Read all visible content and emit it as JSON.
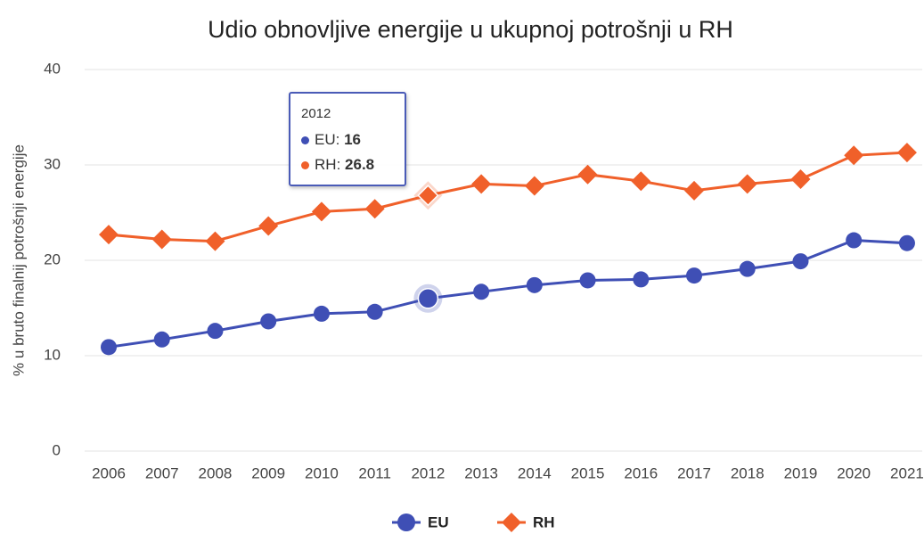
{
  "chart_data": {
    "type": "line",
    "title": "Udio obnovljive energije u ukupnoj potrošnji u RH",
    "y_label": "% u bruto finalnij potrošnji energije",
    "categories": [
      "2006",
      "2007",
      "2008",
      "2009",
      "2010",
      "2011",
      "2012",
      "2013",
      "2014",
      "2015",
      "2016",
      "2017",
      "2018",
      "2019",
      "2020",
      "2021"
    ],
    "series": [
      {
        "name": "EU",
        "color": "#3f4fb5",
        "marker": "circle",
        "values": [
          10.9,
          11.7,
          12.6,
          13.6,
          14.4,
          14.6,
          16,
          16.7,
          17.4,
          17.9,
          18.0,
          18.4,
          19.1,
          19.9,
          22.1,
          21.8
        ]
      },
      {
        "name": "RH",
        "color": "#f0602a",
        "marker": "diamond",
        "values": [
          22.7,
          22.2,
          22.0,
          23.6,
          25.1,
          25.4,
          26.8,
          28.0,
          27.8,
          29.0,
          28.3,
          27.3,
          28.0,
          28.5,
          31.0,
          31.3
        ]
      }
    ],
    "ylim": [
      0,
      40
    ],
    "yticks": [
      0,
      10,
      20,
      30,
      40
    ],
    "grid": true,
    "legend": "bottom"
  }
}
